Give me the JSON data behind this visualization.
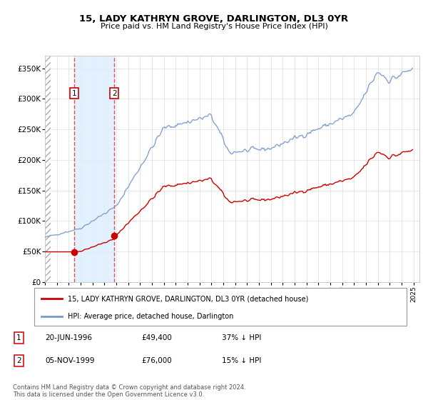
{
  "title": "15, LADY KATHRYN GROVE, DARLINGTON, DL3 0YR",
  "subtitle": "Price paid vs. HM Land Registry's House Price Index (HPI)",
  "xlim_start": 1994.0,
  "xlim_end": 2025.5,
  "ylim_min": 0,
  "ylim_max": 370000,
  "yticks": [
    0,
    50000,
    100000,
    150000,
    200000,
    250000,
    300000,
    350000
  ],
  "ytick_labels": [
    "£0",
    "£50K",
    "£100K",
    "£150K",
    "£200K",
    "£250K",
    "£300K",
    "£350K"
  ],
  "purchase1_date": 1996.46,
  "purchase1_price": 49400,
  "purchase1_label": "1",
  "purchase1_text": "20-JUN-1996",
  "purchase1_amount": "£49,400",
  "purchase1_hpi": "37% ↓ HPI",
  "purchase2_date": 1999.84,
  "purchase2_price": 76000,
  "purchase2_label": "2",
  "purchase2_text": "05-NOV-1999",
  "purchase2_amount": "£76,000",
  "purchase2_hpi": "15% ↓ HPI",
  "hpi_line_color": "#7799cc",
  "price_line_color": "#cc0000",
  "marker_color": "#cc0000",
  "dashed_line_color": "#e05050",
  "shade_color": "#ddeeff",
  "legend_label1": "15, LADY KATHRYN GROVE, DARLINGTON, DL3 0YR (detached house)",
  "legend_label2": "HPI: Average price, detached house, Darlington",
  "footnote": "Contains HM Land Registry data © Crown copyright and database right 2024.\nThis data is licensed under the Open Government Licence v3.0."
}
